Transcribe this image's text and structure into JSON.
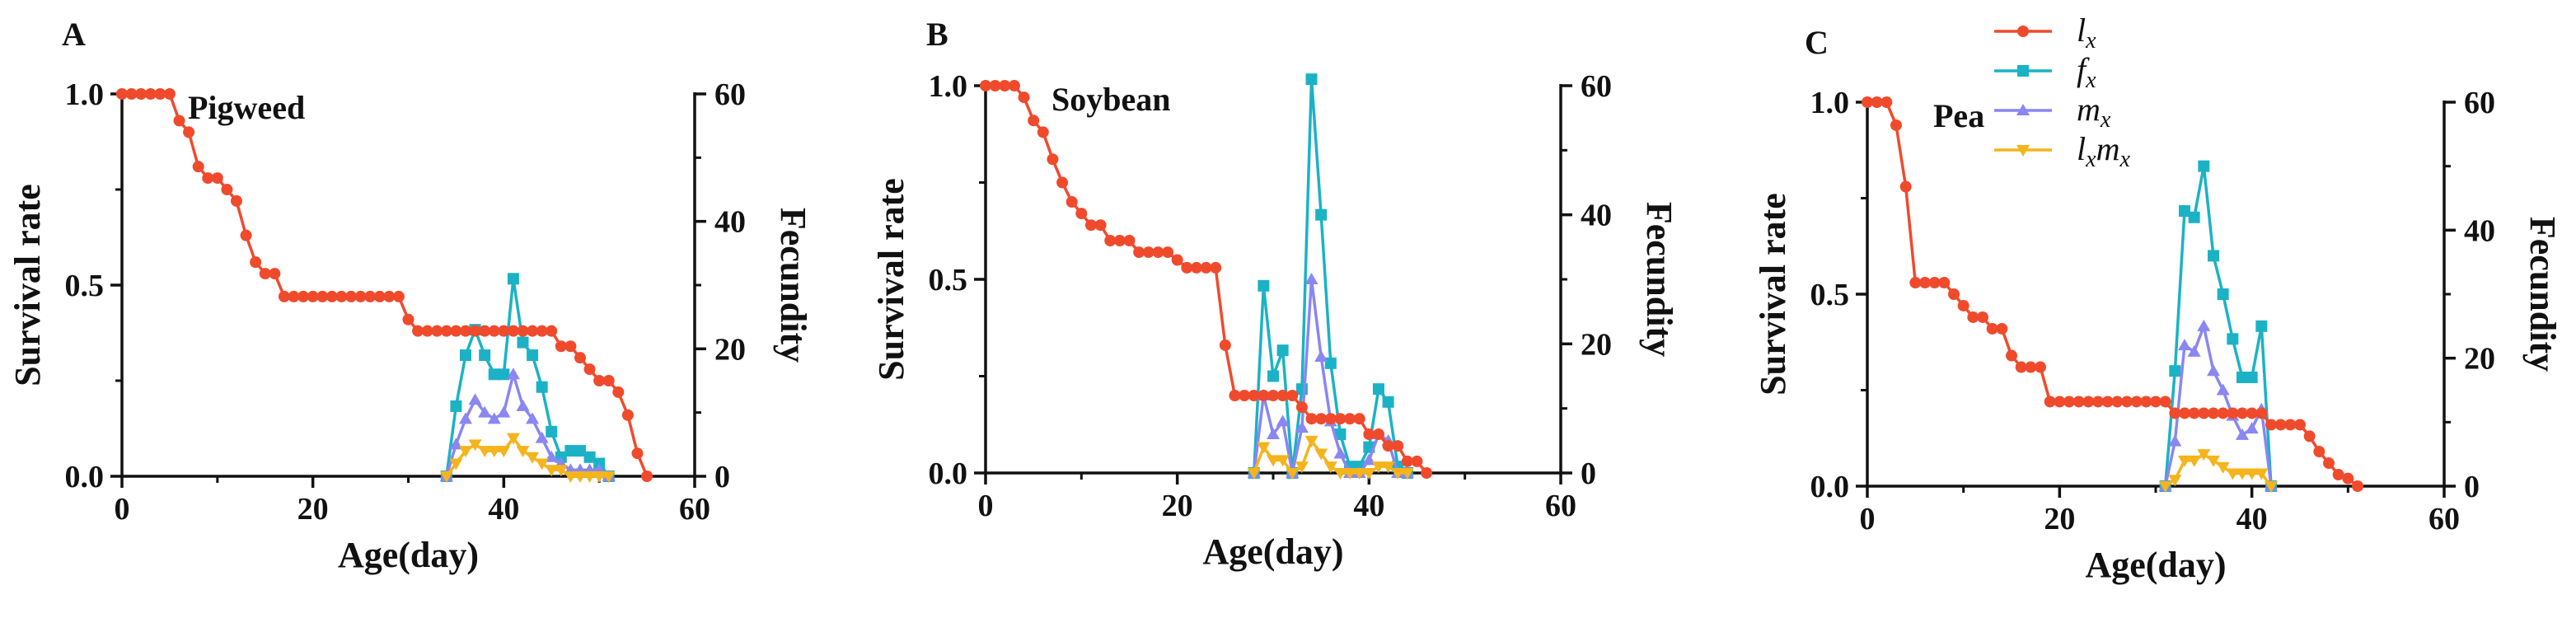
{
  "colors": {
    "lx": "#f04a2c",
    "fx": "#1bb2c6",
    "mx": "#8a86f2",
    "lxmx": "#f5b41b",
    "axis": "#111111"
  },
  "legend": [
    {
      "series": "lx",
      "base": "l",
      "sub": "x",
      "base2": "",
      "sub2": "",
      "marker": "circle"
    },
    {
      "series": "fx",
      "base": "f",
      "sub": "x",
      "base2": "",
      "sub2": "",
      "marker": "square"
    },
    {
      "series": "mx",
      "base": "m",
      "sub": "x",
      "base2": "",
      "sub2": "",
      "marker": "triangle-up"
    },
    {
      "series": "lxmx",
      "base": "l",
      "sub": "x",
      "base2": "m",
      "sub2": "x",
      "marker": "triangle-down"
    }
  ],
  "chart_data": [
    {
      "panel": "A",
      "title": "Pigweed",
      "type": "line",
      "xlabel": "Age(day)",
      "ylabel": "Survival rate",
      "y2label": "Fecundity",
      "xlim": [
        0,
        60
      ],
      "ylim": [
        0,
        1
      ],
      "y2lim": [
        0,
        60
      ],
      "xticks": [
        "0",
        "20",
        "40",
        "60"
      ],
      "yticks": [
        "0.0",
        "0.5",
        "1.0"
      ],
      "y2ticks": [
        "0",
        "20",
        "40",
        "60"
      ],
      "series": [
        {
          "name": "lx",
          "axis": "left",
          "x": [
            0,
            1,
            2,
            3,
            4,
            5,
            6,
            7,
            8,
            9,
            10,
            11,
            12,
            13,
            14,
            15,
            16,
            17,
            18,
            19,
            20,
            21,
            22,
            23,
            24,
            25,
            26,
            27,
            28,
            29,
            30,
            31,
            32,
            33,
            34,
            35,
            36,
            37,
            38,
            39,
            40,
            41,
            42,
            43,
            44,
            45,
            46,
            47,
            48,
            49,
            50,
            51,
            52,
            53,
            54,
            55
          ],
          "values": [
            1,
            1,
            1,
            1,
            1,
            1,
            0.93,
            0.9,
            0.81,
            0.78,
            0.78,
            0.75,
            0.72,
            0.63,
            0.56,
            0.53,
            0.53,
            0.47,
            0.47,
            0.47,
            0.47,
            0.47,
            0.47,
            0.47,
            0.47,
            0.47,
            0.47,
            0.47,
            0.47,
            0.47,
            0.41,
            0.38,
            0.38,
            0.38,
            0.38,
            0.38,
            0.38,
            0.38,
            0.38,
            0.38,
            0.38,
            0.38,
            0.38,
            0.38,
            0.38,
            0.38,
            0.34,
            0.34,
            0.31,
            0.28,
            0.25,
            0.25,
            0.22,
            0.16,
            0.06,
            0
          ]
        },
        {
          "name": "fx",
          "axis": "right",
          "x": [
            34,
            35,
            36,
            37,
            38,
            39,
            40,
            41,
            42,
            43,
            44,
            45,
            46,
            47,
            48,
            49,
            50,
            51
          ],
          "values": [
            0,
            11,
            19,
            23,
            19,
            16,
            16,
            31,
            21,
            19,
            14,
            7,
            3,
            4,
            4,
            3,
            2,
            0
          ]
        },
        {
          "name": "mx",
          "axis": "right",
          "x": [
            34,
            35,
            36,
            37,
            38,
            39,
            40,
            41,
            42,
            43,
            44,
            45,
            46,
            47,
            48,
            49,
            50,
            51
          ],
          "values": [
            0,
            5,
            9,
            12,
            10,
            9,
            10,
            16,
            11,
            9,
            6,
            3,
            2,
            1,
            1,
            1,
            1,
            0
          ]
        },
        {
          "name": "lxmx",
          "axis": "right",
          "x": [
            34,
            35,
            36,
            37,
            38,
            39,
            40,
            41,
            42,
            43,
            44,
            45,
            46,
            47,
            48,
            49,
            50,
            51
          ],
          "values": [
            0,
            2,
            4,
            5,
            4,
            4,
            4,
            6,
            4,
            3,
            2,
            1,
            1,
            0,
            0,
            0,
            0,
            0
          ]
        }
      ]
    },
    {
      "panel": "B",
      "title": "Soybean",
      "type": "line",
      "xlabel": "Age(day)",
      "ylabel": "Survival rate",
      "y2label": "Fecundity",
      "xlim": [
        0,
        60
      ],
      "ylim": [
        0,
        1
      ],
      "y2lim": [
        0,
        60
      ],
      "xticks": [
        "0",
        "20",
        "40",
        "60"
      ],
      "yticks": [
        "0.0",
        "0.5",
        "1.0"
      ],
      "y2ticks": [
        "0",
        "20",
        "40",
        "60"
      ],
      "series": [
        {
          "name": "lx",
          "axis": "left",
          "x": [
            0,
            1,
            2,
            3,
            4,
            5,
            6,
            7,
            8,
            9,
            10,
            11,
            12,
            13,
            14,
            15,
            16,
            17,
            18,
            19,
            20,
            21,
            22,
            23,
            24,
            25,
            26,
            27,
            28,
            29,
            30,
            31,
            32,
            33,
            34,
            35,
            36,
            37,
            38,
            39,
            40,
            41,
            42,
            43,
            44,
            45,
            46
          ],
          "values": [
            1,
            1,
            1,
            1,
            0.97,
            0.91,
            0.88,
            0.81,
            0.75,
            0.7,
            0.67,
            0.64,
            0.64,
            0.6,
            0.6,
            0.6,
            0.57,
            0.57,
            0.57,
            0.57,
            0.55,
            0.53,
            0.53,
            0.53,
            0.53,
            0.33,
            0.2,
            0.2,
            0.2,
            0.2,
            0.2,
            0.2,
            0.2,
            0.17,
            0.14,
            0.14,
            0.14,
            0.14,
            0.14,
            0.14,
            0.1,
            0.1,
            0.07,
            0.07,
            0.03,
            0.03,
            0
          ]
        },
        {
          "name": "fx",
          "axis": "right",
          "x": [
            28,
            29,
            30,
            31,
            32,
            33,
            34,
            35,
            36,
            37,
            38,
            39,
            40,
            41,
            42,
            43,
            44
          ],
          "values": [
            0,
            29,
            15,
            19,
            0,
            13,
            61,
            40,
            17,
            6,
            1,
            1,
            4,
            13,
            11,
            1,
            0
          ]
        },
        {
          "name": "mx",
          "axis": "right",
          "x": [
            28,
            29,
            30,
            31,
            32,
            33,
            34,
            35,
            36,
            37,
            38,
            39,
            40,
            41,
            42,
            43,
            44
          ],
          "values": [
            0,
            12,
            6,
            8,
            0,
            7,
            30,
            18,
            8,
            3,
            0,
            0,
            2,
            6,
            5,
            0,
            0
          ]
        },
        {
          "name": "lxmx",
          "axis": "right",
          "x": [
            28,
            29,
            30,
            31,
            32,
            33,
            34,
            35,
            36,
            37,
            38,
            39,
            40,
            41,
            42,
            43,
            44
          ],
          "values": [
            0,
            4,
            2,
            2,
            0,
            1,
            5,
            3,
            1,
            0,
            0,
            0,
            0,
            1,
            1,
            0,
            0
          ]
        }
      ]
    },
    {
      "panel": "C",
      "title": "Pea",
      "type": "line",
      "xlabel": "Age(day)",
      "ylabel": "Survival rate",
      "y2label": "Fecundity",
      "xlim": [
        0,
        60
      ],
      "ylim": [
        0,
        1
      ],
      "y2lim": [
        0,
        60
      ],
      "xticks": [
        "0",
        "20",
        "40",
        "60"
      ],
      "yticks": [
        "0.0",
        "0.5",
        "1.0"
      ],
      "y2ticks": [
        "0",
        "20",
        "40",
        "60"
      ],
      "series": [
        {
          "name": "lx",
          "axis": "left",
          "x": [
            0,
            1,
            2,
            3,
            4,
            5,
            6,
            7,
            8,
            9,
            10,
            11,
            12,
            13,
            14,
            15,
            16,
            17,
            18,
            19,
            20,
            21,
            22,
            23,
            24,
            25,
            26,
            27,
            28,
            29,
            30,
            31,
            32,
            33,
            34,
            35,
            36,
            37,
            38,
            39,
            40,
            41,
            42,
            43,
            44,
            45,
            46,
            47,
            48,
            49,
            50,
            51
          ],
          "values": [
            1,
            1,
            1,
            0.94,
            0.78,
            0.53,
            0.53,
            0.53,
            0.53,
            0.5,
            0.47,
            0.44,
            0.44,
            0.41,
            0.41,
            0.34,
            0.31,
            0.31,
            0.31,
            0.22,
            0.22,
            0.22,
            0.22,
            0.22,
            0.22,
            0.22,
            0.22,
            0.22,
            0.22,
            0.22,
            0.22,
            0.22,
            0.19,
            0.19,
            0.19,
            0.19,
            0.19,
            0.19,
            0.19,
            0.19,
            0.19,
            0.19,
            0.16,
            0.16,
            0.16,
            0.16,
            0.13,
            0.09,
            0.06,
            0.03,
            0.02,
            0
          ]
        },
        {
          "name": "fx",
          "axis": "right",
          "x": [
            31,
            32,
            33,
            34,
            35,
            36,
            37,
            38,
            39,
            40,
            41,
            42
          ],
          "values": [
            0,
            18,
            43,
            42,
            50,
            36,
            30,
            23,
            17,
            17,
            25,
            0
          ]
        },
        {
          "name": "mx",
          "axis": "right",
          "x": [
            31,
            32,
            33,
            34,
            35,
            36,
            37,
            38,
            39,
            40,
            41,
            42
          ],
          "values": [
            0,
            7,
            22,
            21,
            25,
            18,
            15,
            11,
            8,
            9,
            12,
            0
          ]
        },
        {
          "name": "lxmx",
          "axis": "right",
          "x": [
            31,
            32,
            33,
            34,
            35,
            36,
            37,
            38,
            39,
            40,
            41,
            42
          ],
          "values": [
            0,
            1,
            4,
            4,
            5,
            4,
            3,
            2,
            2,
            2,
            2,
            0
          ]
        }
      ]
    }
  ]
}
